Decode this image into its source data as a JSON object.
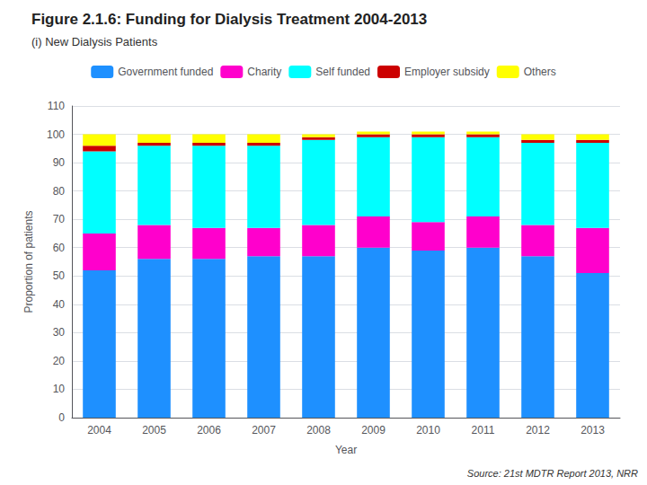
{
  "chart_data": {
    "type": "bar",
    "title": "Figure 2.1.6: Funding for Dialysis Treatment 2004-2013",
    "subtitle": "(i) New Dialysis Patients",
    "xlabel": "Year",
    "ylabel": "Proportion of patients",
    "annotations": [
      "Source: 21st MDTR Report 2013, NRR"
    ],
    "categories": [
      "2004",
      "2005",
      "2006",
      "2007",
      "2008",
      "2009",
      "2010",
      "2011",
      "2012",
      "2013"
    ],
    "series": [
      {
        "name": "Government funded",
        "color": "#1E90FF",
        "values": [
          52,
          56,
          56,
          57,
          57,
          60,
          59,
          60,
          57,
          51
        ]
      },
      {
        "name": "Charity",
        "color": "#FF00CC",
        "values": [
          13,
          12,
          11,
          10,
          11,
          11,
          10,
          11,
          11,
          16
        ]
      },
      {
        "name": "Self funded",
        "color": "#00FFFF",
        "values": [
          29,
          28,
          29,
          29,
          30,
          28,
          30,
          28,
          29,
          30
        ]
      },
      {
        "name": "Employer subsidy",
        "color": "#CC0000",
        "values": [
          2,
          1,
          1,
          1,
          1,
          1,
          1,
          1,
          1,
          1
        ]
      },
      {
        "name": "Others",
        "color": "#FFFF00",
        "values": [
          4,
          3,
          3,
          3,
          1,
          1,
          1,
          1,
          2,
          2
        ]
      }
    ],
    "stacked": true,
    "ylim": [
      0,
      110
    ],
    "yticks": [
      0,
      10,
      20,
      30,
      40,
      50,
      60,
      70,
      80,
      90,
      100,
      110
    ],
    "grid": true,
    "legend": "top"
  }
}
